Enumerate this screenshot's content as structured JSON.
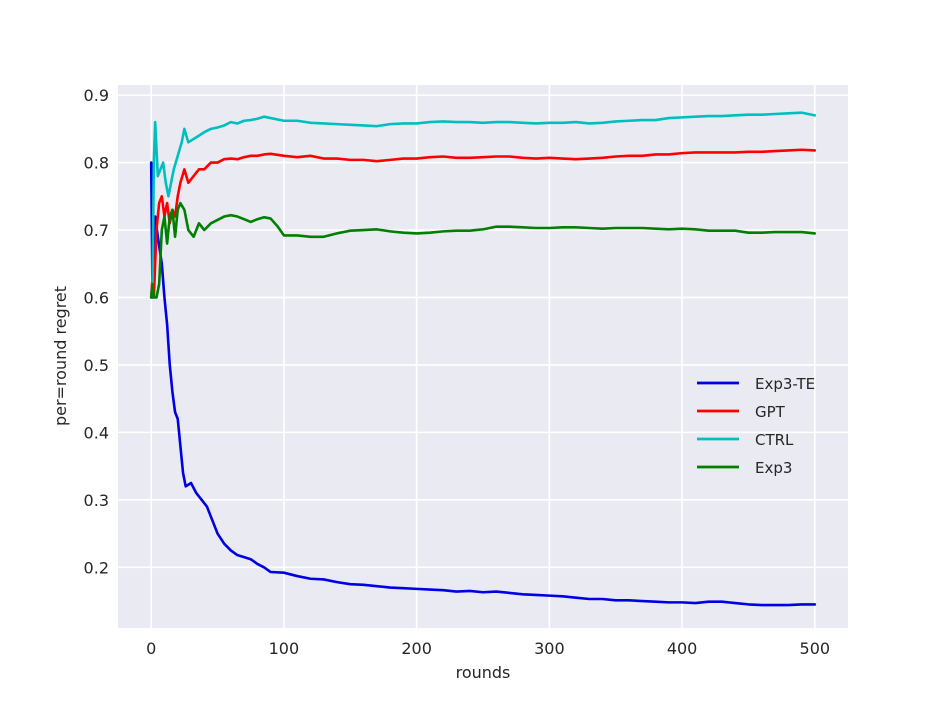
{
  "chart_data": {
    "type": "line",
    "xlabel": "rounds",
    "ylabel": "per=round regret",
    "xlim": [
      -25,
      525
    ],
    "ylim": [
      0.11,
      0.915
    ],
    "xticks": [
      0,
      100,
      200,
      300,
      400,
      500
    ],
    "yticks": [
      0.2,
      0.3,
      0.4,
      0.5,
      0.6,
      0.7,
      0.8,
      0.9
    ],
    "xtick_labels": [
      "0",
      "100",
      "200",
      "300",
      "400",
      "500"
    ],
    "ytick_labels": [
      "0.2",
      "0.3",
      "0.4",
      "0.5",
      "0.6",
      "0.7",
      "0.8",
      "0.9"
    ],
    "grid": true,
    "legend_position": "center-right",
    "style": {
      "background": "#eaeaf2",
      "grid_color": "#ffffff"
    },
    "series": [
      {
        "name": "Exp3-TE",
        "color": "#0000e6",
        "points": [
          [
            0,
            0.8
          ],
          [
            1,
            0.6
          ],
          [
            3,
            0.72
          ],
          [
            5,
            0.69
          ],
          [
            8,
            0.65
          ],
          [
            10,
            0.6
          ],
          [
            12,
            0.56
          ],
          [
            14,
            0.5
          ],
          [
            16,
            0.46
          ],
          [
            18,
            0.43
          ],
          [
            20,
            0.42
          ],
          [
            22,
            0.38
          ],
          [
            24,
            0.34
          ],
          [
            26,
            0.32
          ],
          [
            30,
            0.325
          ],
          [
            34,
            0.31
          ],
          [
            38,
            0.3
          ],
          [
            42,
            0.29
          ],
          [
            46,
            0.27
          ],
          [
            50,
            0.25
          ],
          [
            55,
            0.235
          ],
          [
            60,
            0.225
          ],
          [
            65,
            0.218
          ],
          [
            70,
            0.215
          ],
          [
            75,
            0.212
          ],
          [
            80,
            0.205
          ],
          [
            85,
            0.2
          ],
          [
            90,
            0.193
          ],
          [
            100,
            0.192
          ],
          [
            110,
            0.187
          ],
          [
            120,
            0.183
          ],
          [
            130,
            0.182
          ],
          [
            140,
            0.178
          ],
          [
            150,
            0.175
          ],
          [
            160,
            0.174
          ],
          [
            170,
            0.172
          ],
          [
            180,
            0.17
          ],
          [
            190,
            0.169
          ],
          [
            200,
            0.168
          ],
          [
            210,
            0.167
          ],
          [
            220,
            0.166
          ],
          [
            230,
            0.164
          ],
          [
            240,
            0.165
          ],
          [
            250,
            0.163
          ],
          [
            260,
            0.164
          ],
          [
            270,
            0.162
          ],
          [
            280,
            0.16
          ],
          [
            290,
            0.159
          ],
          [
            300,
            0.158
          ],
          [
            310,
            0.157
          ],
          [
            320,
            0.155
          ],
          [
            330,
            0.153
          ],
          [
            340,
            0.153
          ],
          [
            350,
            0.151
          ],
          [
            360,
            0.151
          ],
          [
            370,
            0.15
          ],
          [
            380,
            0.149
          ],
          [
            390,
            0.148
          ],
          [
            400,
            0.148
          ],
          [
            410,
            0.147
          ],
          [
            420,
            0.149
          ],
          [
            430,
            0.149
          ],
          [
            440,
            0.147
          ],
          [
            450,
            0.145
          ],
          [
            460,
            0.144
          ],
          [
            470,
            0.144
          ],
          [
            480,
            0.144
          ],
          [
            490,
            0.145
          ],
          [
            500,
            0.145
          ]
        ]
      },
      {
        "name": "GPT",
        "color": "#ff0000",
        "points": [
          [
            0,
            0.6
          ],
          [
            1,
            0.63
          ],
          [
            2,
            0.6
          ],
          [
            4,
            0.7
          ],
          [
            6,
            0.74
          ],
          [
            8,
            0.75
          ],
          [
            10,
            0.72
          ],
          [
            12,
            0.74
          ],
          [
            14,
            0.71
          ],
          [
            16,
            0.73
          ],
          [
            18,
            0.72
          ],
          [
            20,
            0.75
          ],
          [
            22,
            0.77
          ],
          [
            25,
            0.79
          ],
          [
            28,
            0.77
          ],
          [
            32,
            0.78
          ],
          [
            36,
            0.79
          ],
          [
            40,
            0.79
          ],
          [
            45,
            0.8
          ],
          [
            50,
            0.8
          ],
          [
            55,
            0.805
          ],
          [
            60,
            0.806
          ],
          [
            65,
            0.805
          ],
          [
            70,
            0.808
          ],
          [
            75,
            0.81
          ],
          [
            80,
            0.81
          ],
          [
            85,
            0.812
          ],
          [
            90,
            0.813
          ],
          [
            100,
            0.81
          ],
          [
            110,
            0.808
          ],
          [
            120,
            0.81
          ],
          [
            130,
            0.806
          ],
          [
            140,
            0.806
          ],
          [
            150,
            0.804
          ],
          [
            160,
            0.804
          ],
          [
            170,
            0.802
          ],
          [
            180,
            0.804
          ],
          [
            190,
            0.806
          ],
          [
            200,
            0.806
          ],
          [
            210,
            0.808
          ],
          [
            220,
            0.809
          ],
          [
            230,
            0.807
          ],
          [
            240,
            0.807
          ],
          [
            250,
            0.808
          ],
          [
            260,
            0.809
          ],
          [
            270,
            0.809
          ],
          [
            280,
            0.807
          ],
          [
            290,
            0.806
          ],
          [
            300,
            0.807
          ],
          [
            310,
            0.806
          ],
          [
            320,
            0.805
          ],
          [
            330,
            0.806
          ],
          [
            340,
            0.807
          ],
          [
            350,
            0.809
          ],
          [
            360,
            0.81
          ],
          [
            370,
            0.81
          ],
          [
            380,
            0.812
          ],
          [
            390,
            0.812
          ],
          [
            400,
            0.814
          ],
          [
            410,
            0.815
          ],
          [
            420,
            0.815
          ],
          [
            430,
            0.815
          ],
          [
            440,
            0.815
          ],
          [
            450,
            0.816
          ],
          [
            460,
            0.816
          ],
          [
            470,
            0.817
          ],
          [
            480,
            0.818
          ],
          [
            490,
            0.819
          ],
          [
            500,
            0.818
          ]
        ]
      },
      {
        "name": "CTRL",
        "color": "#00bfbf",
        "points": [
          [
            0,
            0.6
          ],
          [
            1,
            0.62
          ],
          [
            2,
            0.8
          ],
          [
            3,
            0.86
          ],
          [
            5,
            0.78
          ],
          [
            7,
            0.79
          ],
          [
            9,
            0.8
          ],
          [
            11,
            0.77
          ],
          [
            13,
            0.75
          ],
          [
            15,
            0.77
          ],
          [
            17,
            0.79
          ],
          [
            20,
            0.81
          ],
          [
            23,
            0.83
          ],
          [
            25,
            0.85
          ],
          [
            28,
            0.83
          ],
          [
            32,
            0.835
          ],
          [
            36,
            0.84
          ],
          [
            40,
            0.845
          ],
          [
            45,
            0.85
          ],
          [
            50,
            0.852
          ],
          [
            55,
            0.855
          ],
          [
            60,
            0.86
          ],
          [
            65,
            0.858
          ],
          [
            70,
            0.862
          ],
          [
            75,
            0.863
          ],
          [
            80,
            0.865
          ],
          [
            85,
            0.868
          ],
          [
            90,
            0.866
          ],
          [
            100,
            0.862
          ],
          [
            110,
            0.862
          ],
          [
            120,
            0.859
          ],
          [
            130,
            0.858
          ],
          [
            140,
            0.857
          ],
          [
            150,
            0.856
          ],
          [
            160,
            0.855
          ],
          [
            170,
            0.854
          ],
          [
            180,
            0.857
          ],
          [
            190,
            0.858
          ],
          [
            200,
            0.858
          ],
          [
            210,
            0.86
          ],
          [
            220,
            0.861
          ],
          [
            230,
            0.86
          ],
          [
            240,
            0.86
          ],
          [
            250,
            0.859
          ],
          [
            260,
            0.86
          ],
          [
            270,
            0.86
          ],
          [
            280,
            0.859
          ],
          [
            290,
            0.858
          ],
          [
            300,
            0.859
          ],
          [
            310,
            0.859
          ],
          [
            320,
            0.86
          ],
          [
            330,
            0.858
          ],
          [
            340,
            0.859
          ],
          [
            350,
            0.861
          ],
          [
            360,
            0.862
          ],
          [
            370,
            0.863
          ],
          [
            380,
            0.863
          ],
          [
            390,
            0.866
          ],
          [
            400,
            0.867
          ],
          [
            410,
            0.868
          ],
          [
            420,
            0.869
          ],
          [
            430,
            0.869
          ],
          [
            440,
            0.87
          ],
          [
            450,
            0.871
          ],
          [
            460,
            0.871
          ],
          [
            470,
            0.872
          ],
          [
            480,
            0.873
          ],
          [
            490,
            0.874
          ],
          [
            500,
            0.87
          ]
        ]
      },
      {
        "name": "Exp3",
        "color": "#008000",
        "points": [
          [
            0,
            0.6
          ],
          [
            1,
            0.62
          ],
          [
            2,
            0.6
          ],
          [
            4,
            0.6
          ],
          [
            6,
            0.62
          ],
          [
            8,
            0.7
          ],
          [
            10,
            0.72
          ],
          [
            12,
            0.68
          ],
          [
            14,
            0.72
          ],
          [
            16,
            0.73
          ],
          [
            18,
            0.69
          ],
          [
            20,
            0.73
          ],
          [
            22,
            0.74
          ],
          [
            25,
            0.73
          ],
          [
            28,
            0.7
          ],
          [
            32,
            0.69
          ],
          [
            36,
            0.71
          ],
          [
            40,
            0.7
          ],
          [
            45,
            0.71
          ],
          [
            50,
            0.715
          ],
          [
            55,
            0.72
          ],
          [
            60,
            0.722
          ],
          [
            65,
            0.72
          ],
          [
            70,
            0.716
          ],
          [
            75,
            0.712
          ],
          [
            80,
            0.716
          ],
          [
            85,
            0.719
          ],
          [
            90,
            0.717
          ],
          [
            95,
            0.706
          ],
          [
            100,
            0.692
          ],
          [
            110,
            0.692
          ],
          [
            120,
            0.69
          ],
          [
            130,
            0.69
          ],
          [
            140,
            0.695
          ],
          [
            150,
            0.699
          ],
          [
            160,
            0.7
          ],
          [
            170,
            0.701
          ],
          [
            180,
            0.698
          ],
          [
            190,
            0.696
          ],
          [
            200,
            0.695
          ],
          [
            210,
            0.696
          ],
          [
            220,
            0.698
          ],
          [
            230,
            0.699
          ],
          [
            240,
            0.699
          ],
          [
            250,
            0.701
          ],
          [
            260,
            0.705
          ],
          [
            270,
            0.705
          ],
          [
            280,
            0.704
          ],
          [
            290,
            0.703
          ],
          [
            300,
            0.703
          ],
          [
            310,
            0.704
          ],
          [
            320,
            0.704
          ],
          [
            330,
            0.703
          ],
          [
            340,
            0.702
          ],
          [
            350,
            0.703
          ],
          [
            360,
            0.703
          ],
          [
            370,
            0.703
          ],
          [
            380,
            0.702
          ],
          [
            390,
            0.701
          ],
          [
            400,
            0.702
          ],
          [
            410,
            0.701
          ],
          [
            420,
            0.699
          ],
          [
            430,
            0.699
          ],
          [
            440,
            0.699
          ],
          [
            450,
            0.696
          ],
          [
            460,
            0.696
          ],
          [
            470,
            0.697
          ],
          [
            480,
            0.697
          ],
          [
            490,
            0.697
          ],
          [
            500,
            0.695
          ]
        ]
      }
    ]
  }
}
